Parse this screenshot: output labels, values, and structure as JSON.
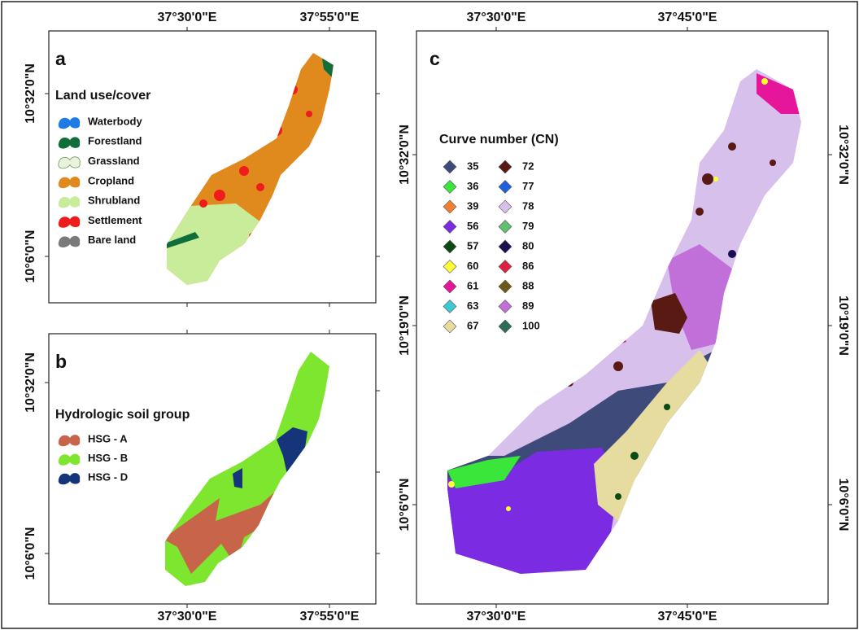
{
  "panels": [
    {
      "label": "a",
      "legend_title": "Land use/cover",
      "legend": [
        {
          "name": "Waterbody",
          "color": "#1e7be6"
        },
        {
          "name": "Forestland",
          "color": "#0f6e3a"
        },
        {
          "name": "Grassland",
          "color": "#e8f2dc"
        },
        {
          "name": "Cropland",
          "color": "#e08a1e"
        },
        {
          "name": "Shrubland",
          "color": "#c8ec9a"
        },
        {
          "name": "Settlement",
          "color": "#ee1c1c"
        },
        {
          "name": "Bare land",
          "color": "#7a7a7a"
        }
      ],
      "top_labels": [
        "37°30'0\"E",
        "37°55'0\"E"
      ],
      "left_labels": [
        "10°32'0\"N",
        "10°6'0\"N"
      ]
    },
    {
      "label": "b",
      "legend_title": "Hydrologic soil group",
      "legend": [
        {
          "name": "HSG - A",
          "color": "#c8644a"
        },
        {
          "name": "HSG - B",
          "color": "#7ee62e"
        },
        {
          "name": "HSG - D",
          "color": "#16347a"
        }
      ],
      "bottom_labels": [
        "37°30'0\"E",
        "37°55'0\"E"
      ],
      "left_labels": [
        "10°32'0\"N",
        "10°6'0\"N"
      ]
    },
    {
      "label": "c",
      "legend_title": "Curve number (CN)",
      "legend": [
        {
          "name": 35,
          "color": "#3d4a7a"
        },
        {
          "name": 36,
          "color": "#39e639"
        },
        {
          "name": 39,
          "color": "#f08030"
        },
        {
          "name": 56,
          "color": "#7b2be2"
        },
        {
          "name": 57,
          "color": "#0b4a12"
        },
        {
          "name": 60,
          "color": "#ffff33"
        },
        {
          "name": 61,
          "color": "#e6169a"
        },
        {
          "name": 63,
          "color": "#3cc9d6"
        },
        {
          "name": 67,
          "color": "#e6dca0"
        },
        {
          "name": 72,
          "color": "#5a1a14"
        },
        {
          "name": 77,
          "color": "#2060e0"
        },
        {
          "name": 78,
          "color": "#d8c0ec"
        },
        {
          "name": 79,
          "color": "#60c070"
        },
        {
          "name": 80,
          "color": "#1a1050"
        },
        {
          "name": 86,
          "color": "#e0203e"
        },
        {
          "name": 88,
          "color": "#6b5a18"
        },
        {
          "name": 89,
          "color": "#c070d8"
        },
        {
          "name": 100,
          "color": "#2d6e5a"
        }
      ],
      "top_labels": [
        "37°30'0\"E",
        "37°45'0\"E"
      ],
      "bottom_labels": [
        "37°30'0\"E",
        "37°45'0\"E"
      ],
      "left_labels": [
        "10°32'0\"N",
        "10°19'0\"N",
        "10°6'0\"N"
      ],
      "right_labels": [
        "10°32'0\"N",
        "10°19'0\"N",
        "10°6'0\"N"
      ]
    }
  ]
}
